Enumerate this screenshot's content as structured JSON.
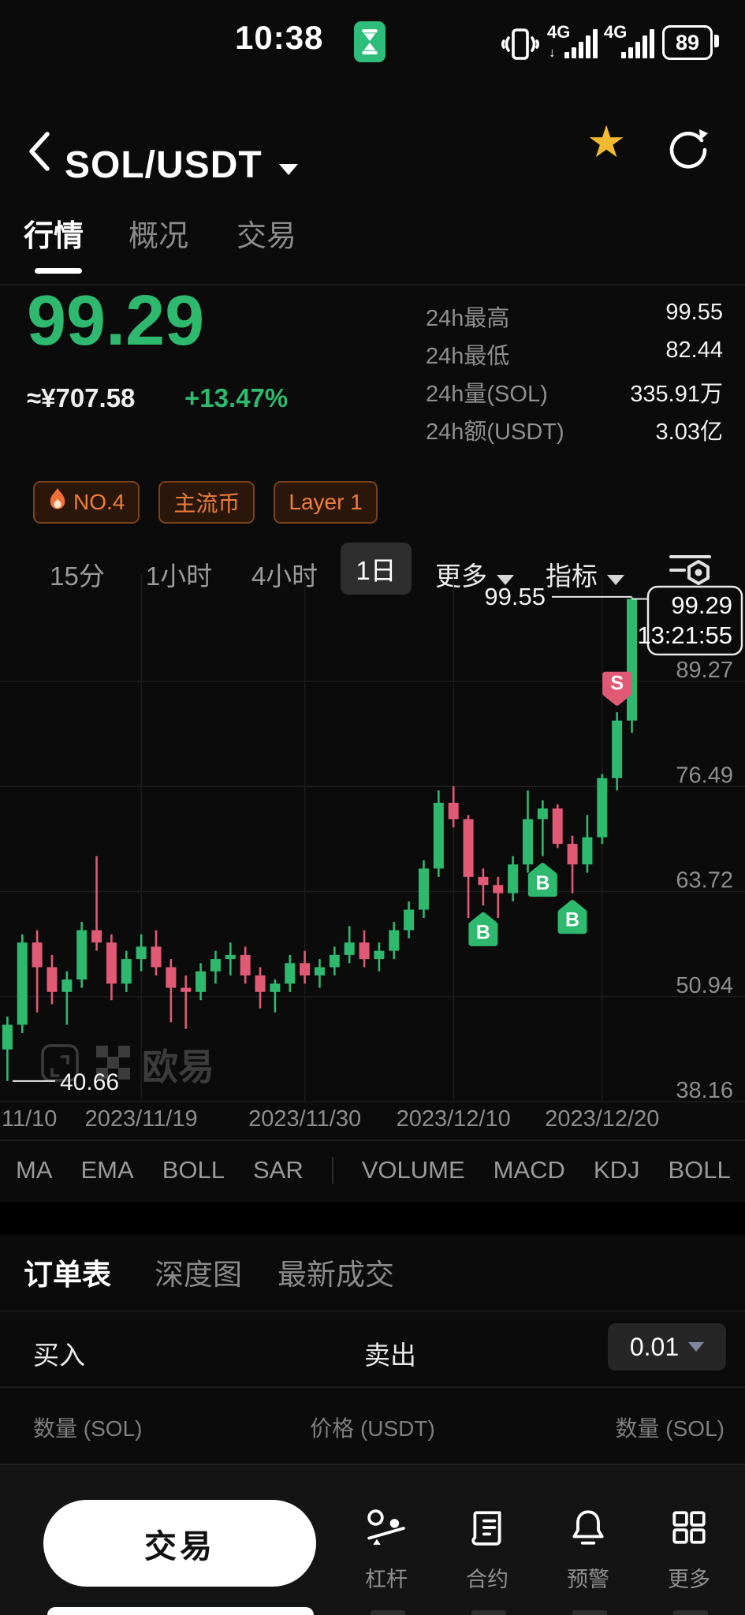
{
  "status_bar": {
    "time": "10:38",
    "battery": "89",
    "network_a": "4G",
    "network_b": "4G"
  },
  "header": {
    "title": "SOL/USDT"
  },
  "tabs": [
    {
      "label": "行情",
      "active": true
    },
    {
      "label": "概况",
      "active": false
    },
    {
      "label": "交易",
      "active": false
    }
  ],
  "price": {
    "last": "99.29",
    "fiat": "≈¥707.58",
    "change": "+13.47%"
  },
  "stats": [
    {
      "label": "24h最高",
      "value": "99.55"
    },
    {
      "label": "24h最低",
      "value": "82.44"
    },
    {
      "label": "24h量(SOL)",
      "value": "335.91万"
    },
    {
      "label": "24h额(USDT)",
      "value": "3.03亿"
    }
  ],
  "badges": [
    {
      "label": "NO.4",
      "icon": "flame-icon"
    },
    {
      "label": "主流币"
    },
    {
      "label": "Layer 1"
    }
  ],
  "timeframes": {
    "items": [
      "15分",
      "1小时",
      "4小时",
      "1日"
    ],
    "selected": "1日",
    "more_label": "更多",
    "indicator_label": "指标"
  },
  "chart_data": {
    "type": "candlestick",
    "symbol": "SOL/USDT",
    "interval": "1日",
    "y_ticks": [
      89.27,
      76.49,
      63.72,
      50.94,
      38.16
    ],
    "high": 99.55,
    "low": 40.66,
    "high_label": "99.55",
    "low_label": "40.66",
    "current_price": "99.29",
    "current_time": "13:21:55",
    "watermark": "欧易",
    "x_labels": [
      {
        "text": "11/10",
        "idx": 0
      },
      {
        "text": "2023/11/19",
        "idx": 9
      },
      {
        "text": "2023/11/30",
        "idx": 20
      },
      {
        "text": "2023/12/10",
        "idx": 30
      },
      {
        "text": "2023/12/20",
        "idx": 40
      }
    ],
    "candles": [
      [
        44.5,
        48.5,
        40.66,
        47.5
      ],
      [
        47.5,
        58.5,
        46.5,
        57.5
      ],
      [
        57.5,
        59.0,
        49.0,
        54.5
      ],
      [
        54.5,
        56.0,
        50.0,
        51.5
      ],
      [
        51.5,
        54.0,
        47.5,
        53.0
      ],
      [
        53.0,
        60.0,
        52.0,
        59.0
      ],
      [
        59.0,
        68.0,
        56.5,
        57.5
      ],
      [
        57.5,
        58.5,
        50.5,
        52.5
      ],
      [
        52.5,
        56.5,
        51.5,
        55.5
      ],
      [
        55.5,
        58.5,
        54.0,
        57.0
      ],
      [
        57.0,
        59.0,
        53.5,
        54.5
      ],
      [
        54.5,
        55.5,
        47.8,
        52.0
      ],
      [
        52.0,
        53.5,
        47.0,
        51.5
      ],
      [
        51.5,
        55.0,
        50.5,
        54.0
      ],
      [
        54.0,
        56.5,
        52.5,
        55.5
      ],
      [
        55.5,
        57.5,
        53.5,
        56.0
      ],
      [
        56.0,
        57.0,
        52.5,
        53.5
      ],
      [
        53.5,
        54.5,
        49.5,
        51.5
      ],
      [
        51.5,
        53.0,
        49.0,
        52.5
      ],
      [
        52.5,
        56.0,
        51.5,
        55.0
      ],
      [
        55.0,
        56.5,
        52.5,
        53.5
      ],
      [
        53.5,
        55.5,
        52.0,
        54.5
      ],
      [
        54.5,
        57.0,
        53.5,
        56.0
      ],
      [
        56.0,
        59.5,
        55.0,
        57.5
      ],
      [
        57.5,
        59.0,
        54.5,
        55.5
      ],
      [
        55.5,
        57.5,
        54.0,
        56.5
      ],
      [
        56.5,
        60.0,
        55.5,
        59.0
      ],
      [
        59.0,
        62.5,
        58.0,
        61.5
      ],
      [
        61.5,
        67.5,
        60.5,
        66.5
      ],
      [
        66.5,
        76.0,
        65.5,
        74.5
      ],
      [
        74.5,
        76.5,
        71.5,
        72.5
      ],
      [
        72.5,
        73.0,
        60.5,
        65.5
      ],
      [
        65.5,
        66.5,
        62.0,
        64.5
      ],
      [
        64.5,
        65.5,
        60.5,
        63.5
      ],
      [
        63.5,
        68.0,
        62.5,
        67.0
      ],
      [
        67.0,
        76.0,
        66.0,
        72.5
      ],
      [
        72.5,
        74.8,
        68.0,
        73.8
      ],
      [
        73.8,
        74.3,
        69.0,
        69.5
      ],
      [
        69.5,
        70.5,
        63.5,
        67.0
      ],
      [
        67.0,
        73.0,
        66.0,
        70.3
      ],
      [
        70.3,
        78.0,
        69.5,
        77.5
      ],
      [
        77.5,
        85.5,
        76.0,
        84.5
      ],
      [
        84.5,
        99.55,
        83.0,
        99.29
      ]
    ],
    "markers": [
      {
        "idx": 32,
        "type": "B"
      },
      {
        "idx": 36,
        "type": "B"
      },
      {
        "idx": 38,
        "type": "B"
      },
      {
        "idx": 41,
        "type": "S"
      }
    ],
    "legend_note": "grid on, price axis right, date axis bottom"
  },
  "indicator_tabs": [
    "MA",
    "EMA",
    "BOLL",
    "SAR",
    "VOLUME",
    "MACD",
    "KDJ",
    "BOLL"
  ],
  "order_tabs": [
    {
      "label": "订单表",
      "active": true
    },
    {
      "label": "深度图",
      "active": false
    },
    {
      "label": "最新成交",
      "active": false
    }
  ],
  "order_book": {
    "buy_label": "买入",
    "sell_label": "卖出",
    "tick_size": "0.01",
    "col_left": "数量 (SOL)",
    "col_mid": "价格 (USDT)",
    "col_right": "数量 (SOL)"
  },
  "bottom_bar": {
    "trade_label": "交易",
    "items": [
      {
        "label": "杠杆"
      },
      {
        "label": "合约"
      },
      {
        "label": "预警"
      },
      {
        "label": "更多"
      }
    ]
  },
  "icons": {
    "favorite_glyph": "★"
  },
  "colors": {
    "up": "#2eb96f",
    "down": "#e15a75",
    "accent_gold": "#f3ba2f",
    "badge_text": "#ef7d3b",
    "grid": "#1d1d1d",
    "axis_text": "#8d8d8d",
    "watermark": "#3c3c3c",
    "background": "#0b0b0b"
  }
}
